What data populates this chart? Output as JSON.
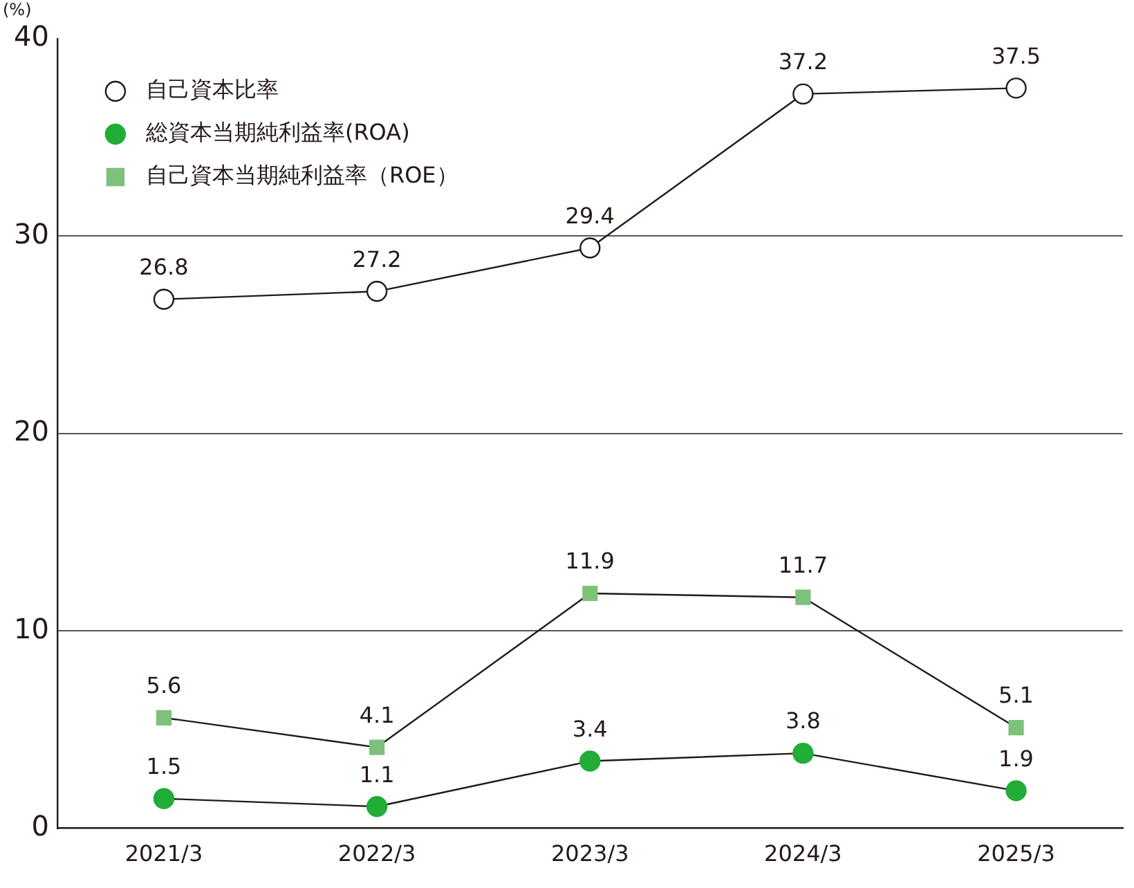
{
  "chart_data": {
    "type": "line",
    "ylabel": "(%)",
    "categories": [
      "2021/3",
      "2022/3",
      "2023/3",
      "2024/3",
      "2025/3"
    ],
    "series": [
      {
        "name": "自己資本比率",
        "color": "#ffffff",
        "marker": "circle",
        "values": [
          26.8,
          27.2,
          29.4,
          37.2,
          37.5
        ]
      },
      {
        "name": "総資本当期純利益率(ROA)",
        "color": "#22ac38",
        "marker": "circle",
        "values": [
          1.5,
          1.1,
          3.4,
          3.8,
          1.9
        ]
      },
      {
        "name": "自己資本当期純利益率（ROE）",
        "color": "#7dc17a",
        "marker": "square",
        "values": [
          5.6,
          4.1,
          11.9,
          11.7,
          5.1
        ]
      }
    ],
    "ylim": [
      0,
      40
    ],
    "yticks": [
      0,
      10,
      20,
      30,
      40
    ],
    "grid": "y",
    "legend": "top left",
    "data_labels": true
  }
}
